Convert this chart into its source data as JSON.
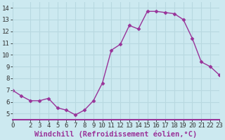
{
  "x": [
    0,
    1,
    2,
    3,
    4,
    5,
    6,
    7,
    8,
    9,
    10,
    11,
    12,
    13,
    14,
    15,
    16,
    17,
    18,
    19,
    20,
    21,
    22,
    23
  ],
  "y": [
    7.0,
    6.5,
    6.1,
    6.1,
    6.3,
    5.5,
    5.3,
    4.9,
    5.3,
    6.1,
    7.6,
    10.4,
    10.9,
    12.5,
    12.2,
    13.7,
    13.7,
    13.6,
    13.5,
    13.0,
    11.4,
    9.4,
    9.0,
    8.3
  ],
  "xlim": [
    0,
    23
  ],
  "ylim": [
    4.5,
    14.5
  ],
  "yticks": [
    5,
    6,
    7,
    8,
    9,
    10,
    11,
    12,
    13,
    14
  ],
  "xticks": [
    0,
    2,
    3,
    4,
    5,
    6,
    7,
    8,
    9,
    10,
    11,
    12,
    13,
    14,
    15,
    16,
    17,
    18,
    19,
    20,
    21,
    22,
    23
  ],
  "xlabel": "Windchill (Refroidissement éolien,°C)",
  "line_color": "#993399",
  "marker": "D",
  "marker_size": 2.5,
  "line_width": 1.0,
  "bg_color": "#cce9f0",
  "grid_color": "#b8d8e0",
  "tick_label_fontsize": 6.5,
  "xlabel_fontsize": 7.5,
  "xlabel_color": "#993399",
  "border_color": "#993399"
}
